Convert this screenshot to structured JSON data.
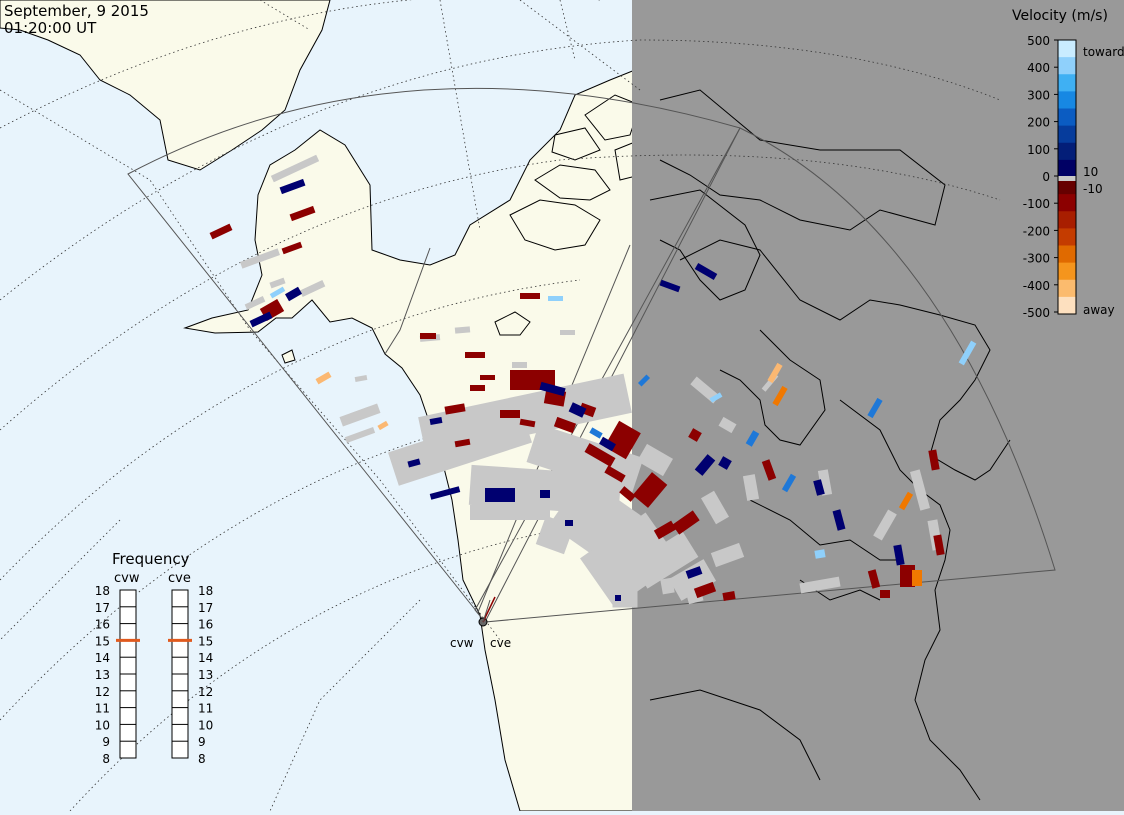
{
  "header": {
    "date": "September, 9 2015",
    "time": "01:20:00 UT"
  },
  "colors": {
    "ocean": "#e8f4fc",
    "land": "#fafaea",
    "night": "#999999",
    "coast": "#000000",
    "ground_scatter": "#c8c8c8"
  },
  "legend": {
    "title": "Velocity (m/s)",
    "ticks": [
      "500",
      "400",
      "300",
      "200",
      "100",
      "0",
      "-100",
      "-200",
      "-300",
      "-400",
      "-500"
    ],
    "small_labels": [
      "10",
      "-10"
    ],
    "toward_label": "toward",
    "away_label": "away",
    "palette": [
      "#c9ecff",
      "#8fd0fb",
      "#3fb0f3",
      "#1788e3",
      "#0b5cc2",
      "#063c9c",
      "#031e78",
      "#000064",
      "#660000",
      "#8c0000",
      "#a81e00",
      "#c43c00",
      "#e06a00",
      "#f5951d",
      "#fbbb6e",
      "#fde0bf"
    ]
  },
  "frequency": {
    "title": "Frequency",
    "radars": [
      {
        "name": "cvw",
        "value": 15
      },
      {
        "name": "cve",
        "value": 15
      }
    ],
    "scale": [
      "18",
      "17",
      "16",
      "15",
      "14",
      "13",
      "12",
      "11",
      "10",
      "9",
      "8"
    ],
    "marker_color": "#e05a1e"
  },
  "radar_sites": [
    {
      "name": "cvw"
    },
    {
      "name": "cve"
    }
  ],
  "icons": {
    "site": "radar-site-icon"
  }
}
